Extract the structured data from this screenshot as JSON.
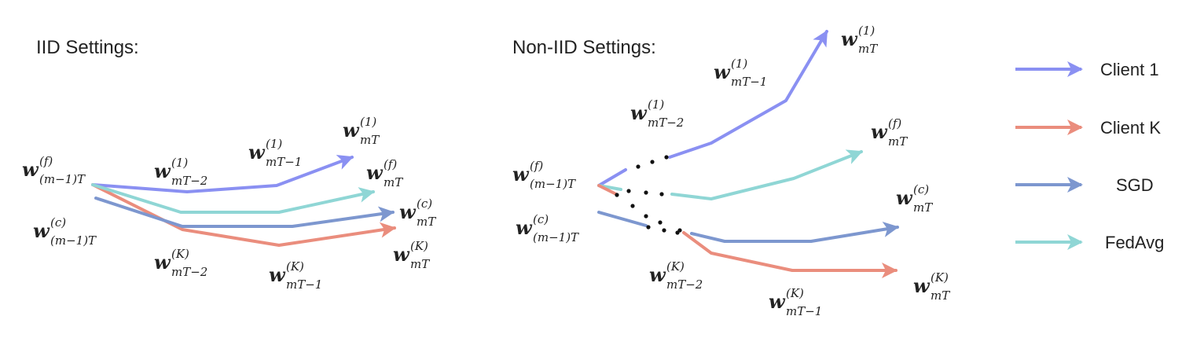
{
  "colors": {
    "client_1": "#8a90f2",
    "client_k": "#ea8d7d",
    "sgd": "#7d97cf",
    "fedavg": "#8fd6d5",
    "text": "#222222"
  },
  "left_panel": {
    "title": "IID Settings:",
    "labels": {
      "w_f_start": {
        "sup": "(f)",
        "sub": "(m−1)T"
      },
      "w_c_start": {
        "sup": "(c)",
        "sub": "(m−1)T"
      },
      "w_1_t2": {
        "sup": "(1)",
        "sub": "mT−2"
      },
      "w_1_t1": {
        "sup": "(1)",
        "sub": "mT−1"
      },
      "w_1_t": {
        "sup": "(1)",
        "sub": "mT"
      },
      "w_f_t": {
        "sup": "(f)",
        "sub": "mT"
      },
      "w_c_t": {
        "sup": "(c)",
        "sub": "mT"
      },
      "w_k_t": {
        "sup": "(K)",
        "sub": "mT"
      },
      "w_k_t2": {
        "sup": "(K)",
        "sub": "mT−2"
      },
      "w_k_t1": {
        "sup": "(K)",
        "sub": "mT−1"
      }
    }
  },
  "right_panel": {
    "title": "Non-IID Settings:",
    "labels": {
      "w_f_start": {
        "sup": "(f)",
        "sub": "(m−1)T"
      },
      "w_c_start": {
        "sup": "(c)",
        "sub": "(m−1)T"
      },
      "w_1_t2": {
        "sup": "(1)",
        "sub": "mT−2"
      },
      "w_1_t1": {
        "sup": "(1)",
        "sub": "mT−1"
      },
      "w_1_t": {
        "sup": "(1)",
        "sub": "mT"
      },
      "w_f_t": {
        "sup": "(f)",
        "sub": "mT"
      },
      "w_c_t": {
        "sup": "(c)",
        "sub": "mT"
      },
      "w_k_t": {
        "sup": "(K)",
        "sub": "mT"
      },
      "w_k_t2": {
        "sup": "(K)",
        "sub": "mT−2"
      },
      "w_k_t1": {
        "sup": "(K)",
        "sub": "mT−1"
      }
    }
  },
  "legend": [
    {
      "label": "Client 1",
      "series": "client_1"
    },
    {
      "label": "Client K",
      "series": "client_k"
    },
    {
      "label": "SGD",
      "series": "sgd"
    },
    {
      "label": "FedAvg",
      "series": "fedavg"
    }
  ],
  "math_symbol": "w"
}
